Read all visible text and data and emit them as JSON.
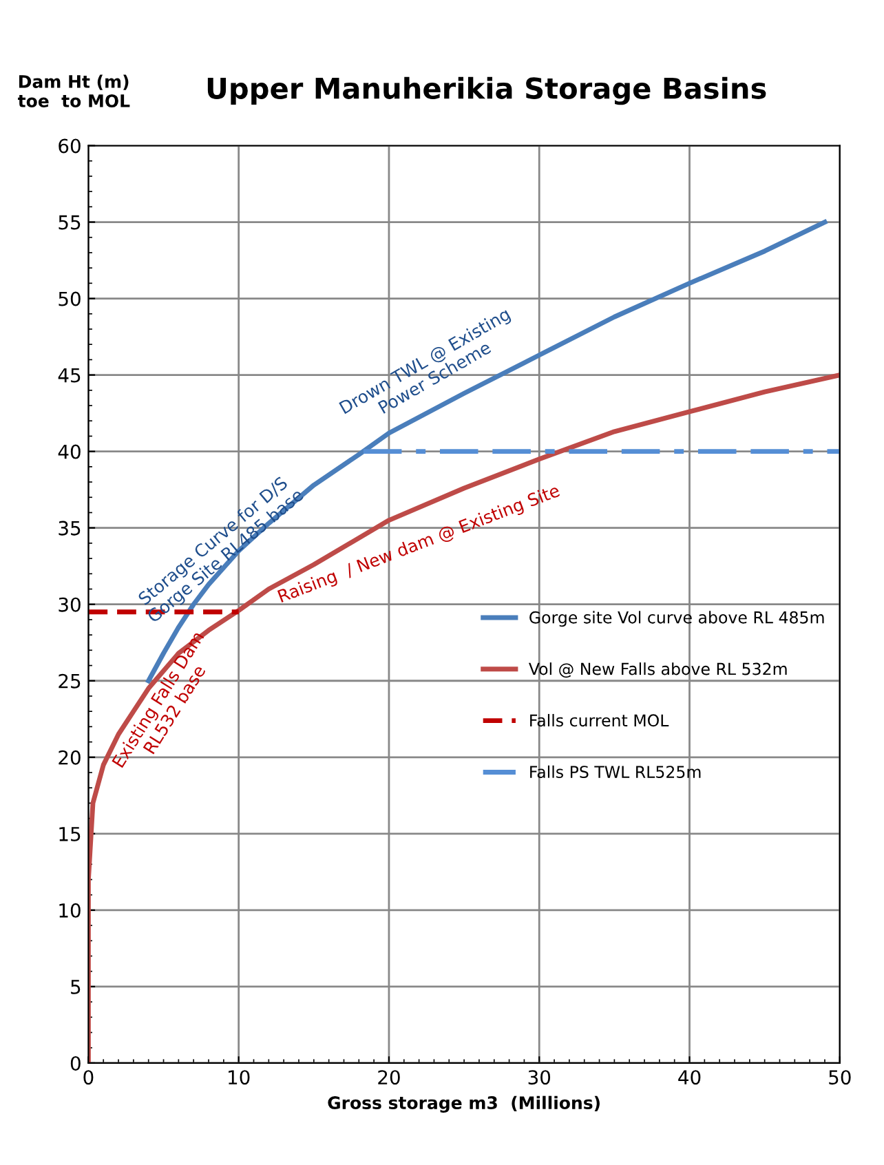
{
  "chart_data": {
    "type": "line",
    "title": "Upper Manuherikia Storage Basins",
    "xlabel": "Gross storage m3  (Millions)",
    "ylabel": "Dam Ht (m)\ntoe  to MOL",
    "series": [
      {
        "name": "Gorge site Vol curve above RL 485m",
        "color": "#4a7ebb",
        "line_style": "solid",
        "x": [
          4,
          5,
          6,
          7,
          8,
          10,
          12,
          15,
          18,
          20,
          25,
          30,
          35,
          40,
          45,
          49
        ],
        "values": [
          25,
          26.8,
          28.5,
          30,
          31.3,
          33.5,
          35.3,
          37.8,
          39.8,
          41.2,
          43.8,
          46.3,
          48.8,
          51,
          53.1,
          55
        ]
      },
      {
        "name": "Vol @ New Falls above RL 532m",
        "color": "#be4b48",
        "line_style": "solid",
        "x": [
          0,
          0,
          0.3,
          1,
          2,
          3,
          4,
          6,
          8,
          10,
          12,
          15,
          20,
          25,
          30,
          35,
          40,
          45,
          50
        ],
        "values": [
          0,
          12,
          17,
          19.5,
          21.5,
          23,
          24.5,
          26.8,
          28.3,
          29.6,
          31,
          32.6,
          35.5,
          37.6,
          39.5,
          41.3,
          42.6,
          43.9,
          45
        ]
      },
      {
        "name": "Falls current MOL",
        "color": "#c00000",
        "line_style": "dashed",
        "x": [
          0,
          10
        ],
        "values": [
          29.5,
          29.5
        ]
      },
      {
        "name": "Falls PS TWL RL525m",
        "color": "#558ed5",
        "line_style": "dashdot",
        "x": [
          18.3,
          50
        ],
        "values": [
          40,
          40
        ]
      }
    ],
    "annotations": [
      "Storage Curve for D/S\nGorge Site RL485 base",
      "Drown TWL @ Existing\nPower Scheme",
      "Raising  / New dam @ Existing Site",
      "Existing Falls Dam\nRL532 base"
    ],
    "xlim": [
      0,
      50
    ],
    "xticks": [
      0,
      10,
      20,
      30,
      40,
      50
    ],
    "ylim": [
      0,
      60
    ],
    "yticks": [
      0,
      5,
      10,
      15,
      20,
      25,
      30,
      35,
      40,
      45,
      50,
      55,
      60
    ],
    "grid": true,
    "legend": "center right"
  }
}
